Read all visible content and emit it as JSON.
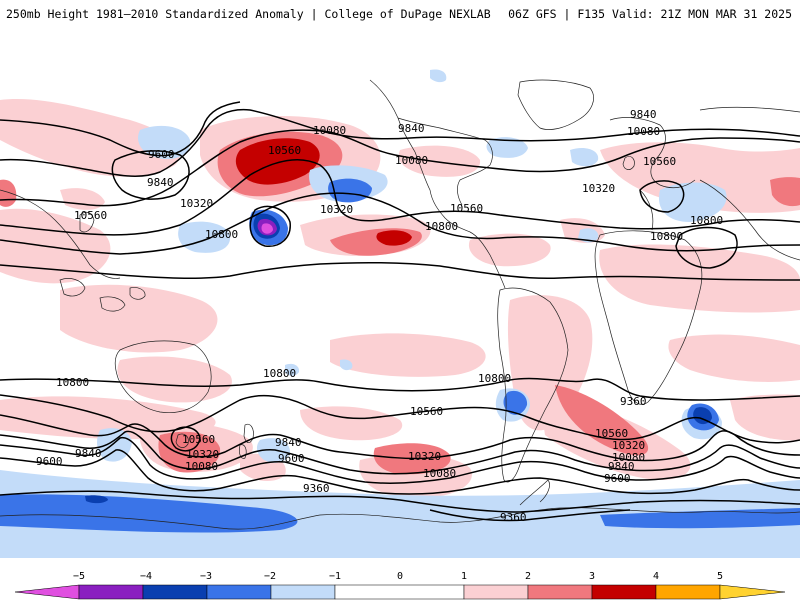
{
  "header": {
    "left_title": "250mb Height 1981—2010 Standardized Anomaly | College of DuPage NEXLAB",
    "right_title": "06Z GFS | F135 Valid: 21Z MON MAR 31 2025"
  },
  "colors": {
    "neg5": "#e04fe0",
    "neg4": "#8a1fc0",
    "neg3": "#0a3fb0",
    "neg2": "#3a74e8",
    "neg1": "#c3dcf9",
    "neutral": "#ffffff",
    "pos1": "#fbd0d3",
    "pos2": "#f0787e",
    "pos3": "#c40000",
    "pos4": "#ffa500",
    "pos5": "#ffd230",
    "contour": "#000000",
    "coast": "#222222"
  },
  "legend": {
    "ticks": [
      "−5",
      "−4",
      "−3",
      "−2",
      "−1",
      "0",
      "1",
      "2",
      "3",
      "4",
      "5"
    ]
  },
  "map": {
    "contour_labels": [
      {
        "id": "c1",
        "text": "9600"
      },
      {
        "id": "c2",
        "text": "9840"
      },
      {
        "id": "c3",
        "text": "10320"
      },
      {
        "id": "c4",
        "text": "10560"
      },
      {
        "id": "c5",
        "text": "10800"
      },
      {
        "id": "c6",
        "text": "10080"
      },
      {
        "id": "c7",
        "text": "10560"
      },
      {
        "id": "c8",
        "text": "10320"
      },
      {
        "id": "c9",
        "text": "9840"
      },
      {
        "id": "c10",
        "text": "10080"
      },
      {
        "id": "c11",
        "text": "10560"
      },
      {
        "id": "c12",
        "text": "10800"
      },
      {
        "id": "c13",
        "text": "9840"
      },
      {
        "id": "c14",
        "text": "10080"
      },
      {
        "id": "c15",
        "text": "10560"
      },
      {
        "id": "c16",
        "text": "10320"
      },
      {
        "id": "c17",
        "text": "10800"
      },
      {
        "id": "c18",
        "text": "10800"
      },
      {
        "id": "c19",
        "text": "10800"
      },
      {
        "id": "c20",
        "text": "10800"
      },
      {
        "id": "c21",
        "text": "10560"
      },
      {
        "id": "c22",
        "text": "10800"
      },
      {
        "id": "c23",
        "text": "10560"
      },
      {
        "id": "c24",
        "text": "10320"
      },
      {
        "id": "c25",
        "text": "10080"
      },
      {
        "id": "c26",
        "text": "9840"
      },
      {
        "id": "c27",
        "text": "9600"
      },
      {
        "id": "c28",
        "text": "10320"
      },
      {
        "id": "c29",
        "text": "10080"
      },
      {
        "id": "c30",
        "text": "9840"
      },
      {
        "id": "c31",
        "text": "9600"
      },
      {
        "id": "c32",
        "text": "10560"
      },
      {
        "id": "c33",
        "text": "10320"
      },
      {
        "id": "c34",
        "text": "10080"
      },
      {
        "id": "c35",
        "text": "9840"
      },
      {
        "id": "c36",
        "text": "9600"
      },
      {
        "id": "c37",
        "text": "9360"
      },
      {
        "id": "c38",
        "text": "9360"
      }
    ]
  }
}
